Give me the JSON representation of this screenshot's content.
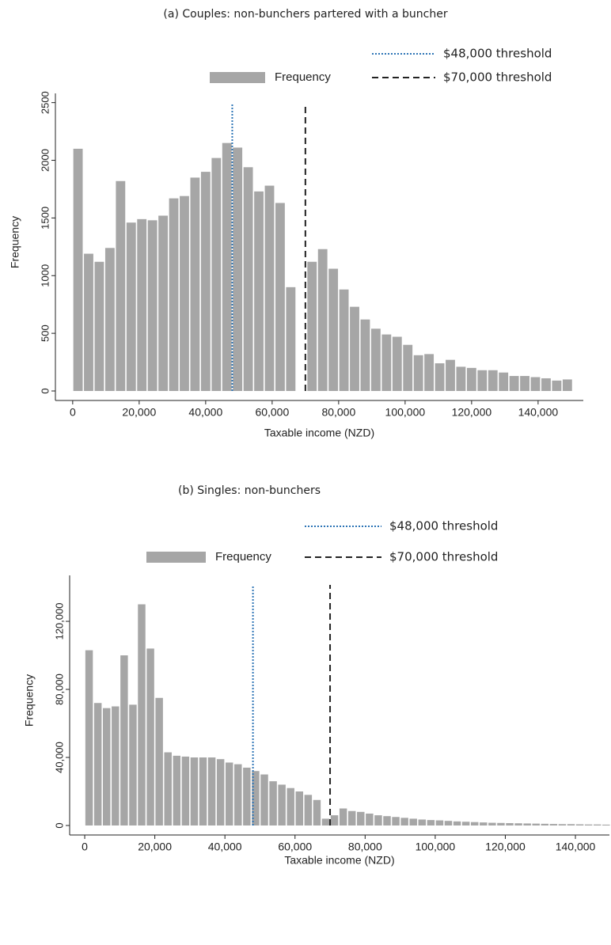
{
  "chart_data": [
    {
      "type": "histogram",
      "title": "(a) Couples: non-bunchers partered with a buncher",
      "x_label": "Taxable income (NZD)",
      "y_label": "Frequency",
      "bins": [
        0,
        3200,
        6400,
        9600,
        12800,
        16000,
        19200,
        22400,
        25600,
        28800,
        32000,
        35200,
        38400,
        41600,
        44800,
        48000,
        51200,
        54400,
        57600,
        60800,
        64000,
        67200,
        70400,
        73600,
        76800,
        80000,
        83200,
        86400,
        89600,
        92800,
        96000,
        99200,
        102400,
        105600,
        108800,
        112000,
        115200,
        118400,
        121600,
        124800,
        128000,
        131200,
        134400,
        137600,
        140800,
        144000,
        147200,
        150400
      ],
      "series": [
        {
          "name": "Frequency",
          "color": "#a6a6a6",
          "values": [
            2100,
            1190,
            1120,
            1240,
            1820,
            1460,
            1490,
            1480,
            1520,
            1670,
            1690,
            1850,
            1900,
            2020,
            2150,
            2110,
            1940,
            1730,
            1780,
            1630,
            900,
            0,
            1120,
            1230,
            1060,
            880,
            730,
            620,
            540,
            490,
            470,
            400,
            310,
            320,
            240,
            270,
            210,
            200,
            180,
            180,
            160,
            130,
            130,
            120,
            110,
            90,
            100
          ]
        }
      ],
      "thresholds": [
        {
          "x": 48000,
          "label": "$48,000 threshold",
          "color": "#2e75b6",
          "style": "dotted"
        },
        {
          "x": 70000,
          "label": "$70,000 threshold",
          "color": "#222222",
          "style": "dashed"
        }
      ],
      "xlim": [
        -5200,
        153600
      ],
      "ylim": [
        0,
        2580
      ],
      "xticks": [
        0,
        {
          "value": 20000,
          "label": "20,000"
        },
        {
          "value": 40000,
          "label": "40,000"
        },
        {
          "value": 60000,
          "label": "60,000"
        },
        {
          "value": 80000,
          "label": "80,000"
        },
        {
          "value": 100000,
          "label": "100,000"
        },
        {
          "value": 120000,
          "label": "120,000"
        },
        {
          "value": 140000,
          "label": "140,000"
        }
      ],
      "yticks": [
        0,
        500,
        1000,
        1500,
        2000,
        2500
      ]
    },
    {
      "type": "histogram",
      "title": "(b) Singles: non-bunchers",
      "x_label": "Taxable income (NZD)",
      "y_label": "Frequency",
      "bins": [
        0,
        2500,
        5000,
        7500,
        10000,
        12500,
        15000,
        17500,
        20000,
        22500,
        25000,
        27500,
        30000,
        32500,
        35000,
        37500,
        40000,
        42500,
        45000,
        47500,
        50000,
        52500,
        55000,
        57500,
        60000,
        62500,
        65000,
        67500,
        70000,
        72500,
        75000,
        77500,
        80000,
        82500,
        85000,
        87500,
        90000,
        92500,
        95000,
        97500,
        100000,
        102500,
        105000,
        107500,
        110000,
        112500,
        115000,
        117500,
        120000,
        122500,
        125000,
        127500,
        130000,
        132500,
        135000,
        137500,
        140000,
        142500,
        145000,
        147500,
        150000
      ],
      "series": [
        {
          "name": "Frequency",
          "color": "#a6a6a6",
          "values": [
            103000,
            72000,
            69000,
            70000,
            100000,
            71000,
            130000,
            104000,
            75000,
            43000,
            41000,
            40500,
            40000,
            40000,
            40000,
            39000,
            37000,
            36000,
            34000,
            32000,
            30000,
            26000,
            24000,
            22000,
            20000,
            18000,
            15000,
            4000,
            6000,
            10000,
            8500,
            8000,
            7000,
            6000,
            5500,
            5000,
            4500,
            4000,
            3500,
            3200,
            3000,
            2700,
            2400,
            2200,
            2000,
            1800,
            1600,
            1500,
            1400,
            1300,
            1200,
            1100,
            1000,
            900,
            800,
            800,
            700,
            600,
            600,
            500
          ]
        }
      ],
      "thresholds": [
        {
          "x": 48000,
          "label": "$48,000 threshold",
          "color": "#2e75b6",
          "style": "dotted"
        },
        {
          "x": 70000,
          "label": "$70,000 threshold",
          "color": "#222222",
          "style": "dashed"
        }
      ],
      "xlim": [
        -4300,
        149700
      ],
      "ylim": [
        0,
        147000
      ],
      "xticks": [
        0,
        {
          "value": 20000,
          "label": "20,000"
        },
        {
          "value": 40000,
          "label": "40,000"
        },
        {
          "value": 60000,
          "label": "60,000"
        },
        {
          "value": 80000,
          "label": "80,000"
        },
        {
          "value": 100000,
          "label": "100,000"
        },
        {
          "value": 120000,
          "label": "120,000"
        },
        {
          "value": 140000,
          "label": "140,000"
        }
      ],
      "yticks": [
        0,
        {
          "value": 40000,
          "label": "40,000"
        },
        {
          "value": 80000,
          "label": "80,000"
        },
        {
          "value": 120000,
          "label": "120,000"
        }
      ]
    }
  ]
}
